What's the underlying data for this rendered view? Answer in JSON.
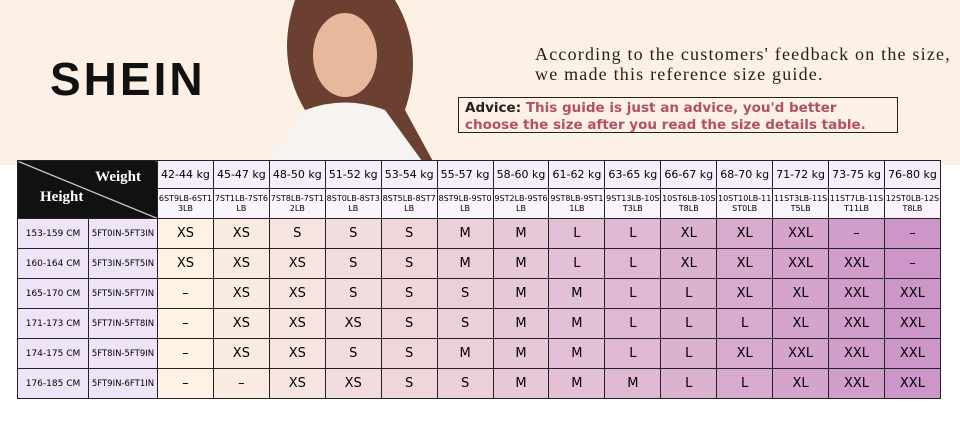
{
  "header": {
    "brand": "SHEIN",
    "intro": "According to the customers' feedback on the size, we made this reference size guide.",
    "advice_label": "Advice:",
    "advice_text": "This guide is just an advice, you'd better choose the size after you read the size details table."
  },
  "table": {
    "corner": {
      "weight": "Weight",
      "height": "Height"
    },
    "columns": [
      {
        "kg": "42-44 kg",
        "lb": "6ST9LB-6ST13LB"
      },
      {
        "kg": "45-47 kg",
        "lb": "7ST1LB-7ST6LB"
      },
      {
        "kg": "48-50 kg",
        "lb": "7ST8LB-7ST12LB"
      },
      {
        "kg": "51-52 kg",
        "lb": "8ST0LB-8ST3LB"
      },
      {
        "kg": "53-54 kg",
        "lb": "8ST5LB-8ST7LB"
      },
      {
        "kg": "55-57 kg",
        "lb": "8ST9LB-9ST0LB"
      },
      {
        "kg": "58-60 kg",
        "lb": "9ST2LB-9ST6LB"
      },
      {
        "kg": "61-62 kg",
        "lb": "9ST8LB-9ST11LB"
      },
      {
        "kg": "63-65 kg",
        "lb": "9ST13LB-10ST3LB"
      },
      {
        "kg": "66-67 kg",
        "lb": "10ST6LB-10ST8LB"
      },
      {
        "kg": "68-70 kg",
        "lb": "10ST10LB-11ST0LB"
      },
      {
        "kg": "71-72 kg",
        "lb": "11ST3LB-11ST5LB"
      },
      {
        "kg": "73-75 kg",
        "lb": "11ST7LB-11ST11LB"
      },
      {
        "kg": "76-80 kg",
        "lb": "12ST0LB-12ST8LB"
      }
    ],
    "rows": [
      {
        "cm": "153-159 CM",
        "ft": "5FT0IN-5FT3IN",
        "sizes": [
          "XS",
          "XS",
          "S",
          "S",
          "S",
          "M",
          "M",
          "L",
          "L",
          "XL",
          "XL",
          "XXL",
          "–",
          "–"
        ]
      },
      {
        "cm": "160-164 CM",
        "ft": "5FT3IN-5FT5IN",
        "sizes": [
          "XS",
          "XS",
          "XS",
          "S",
          "S",
          "M",
          "M",
          "L",
          "L",
          "XL",
          "XL",
          "XXL",
          "XXL",
          "–"
        ]
      },
      {
        "cm": "165-170 CM",
        "ft": "5FT5IN-5FT7IN",
        "sizes": [
          "–",
          "XS",
          "XS",
          "S",
          "S",
          "S",
          "M",
          "M",
          "L",
          "L",
          "XL",
          "XL",
          "XXL",
          "XXL"
        ]
      },
      {
        "cm": "171-173 CM",
        "ft": "5FT7IN-5FT8IN",
        "sizes": [
          "–",
          "XS",
          "XS",
          "XS",
          "S",
          "S",
          "M",
          "M",
          "L",
          "L",
          "L",
          "XL",
          "XXL",
          "XXL"
        ]
      },
      {
        "cm": "174-175 CM",
        "ft": "5FT8IN-5FT9IN",
        "sizes": [
          "–",
          "XS",
          "XS",
          "S",
          "S",
          "M",
          "M",
          "M",
          "L",
          "L",
          "XL",
          "XXL",
          "XXL",
          "XXL"
        ]
      },
      {
        "cm": "176-185 CM",
        "ft": "5FT9IN-6FT1IN",
        "sizes": [
          "–",
          "–",
          "XS",
          "XS",
          "S",
          "S",
          "M",
          "M",
          "M",
          "L",
          "L",
          "XL",
          "XXL",
          "XXL"
        ]
      }
    ]
  }
}
